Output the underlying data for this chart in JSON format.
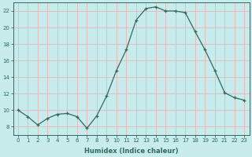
{
  "x": [
    0,
    1,
    2,
    3,
    4,
    5,
    6,
    7,
    8,
    9,
    10,
    11,
    12,
    13,
    14,
    15,
    16,
    17,
    18,
    19,
    20,
    21,
    22,
    23
  ],
  "y": [
    10.0,
    9.2,
    8.2,
    9.0,
    9.5,
    9.6,
    9.2,
    7.8,
    9.3,
    11.7,
    14.8,
    17.3,
    20.9,
    22.3,
    22.5,
    22.0,
    22.0,
    21.8,
    19.5,
    17.3,
    14.8,
    12.1,
    11.5,
    11.2
  ],
  "line_color": "#2e6b5e",
  "marker": "+",
  "marker_size": 3,
  "bg_color": "#c8ecec",
  "grid_color": "#e8b4b8",
  "xlabel": "Humidex (Indice chaleur)",
  "xlim": [
    -0.5,
    23.5
  ],
  "ylim": [
    7.0,
    23.0
  ],
  "yticks": [
    8,
    10,
    12,
    14,
    16,
    18,
    20,
    22
  ],
  "xticks": [
    0,
    1,
    2,
    3,
    4,
    5,
    6,
    7,
    8,
    9,
    10,
    11,
    12,
    13,
    14,
    15,
    16,
    17,
    18,
    19,
    20,
    21,
    22,
    23
  ],
  "tick_color": "#2e6b5e",
  "label_color": "#2e6b5e",
  "spine_color": "#2e6b5e",
  "xlabel_fontsize": 6.0,
  "tick_fontsize": 5.0
}
